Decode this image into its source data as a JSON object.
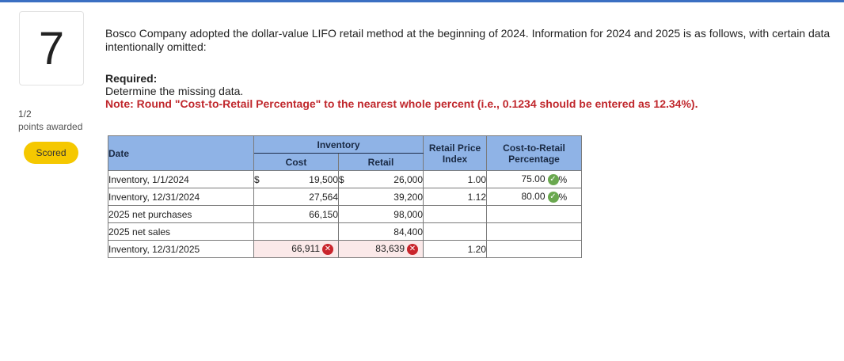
{
  "question": {
    "number": "7",
    "points": "1/2",
    "points_label": "points awarded",
    "status": "Scored",
    "text": "Bosco Company adopted the dollar-value LIFO retail method at the beginning of 2024. Information for 2024 and 2025 is as follows, with certain data intentionally omitted:",
    "required_title": "Required:",
    "required_text": "Determine the missing data.",
    "note": "Note: Round \"Cost-to-Retail Percentage\" to the nearest whole percent (i.e., 0.1234 should be entered as 12.34%)."
  },
  "table": {
    "headers": {
      "date": "Date",
      "inventory": "Inventory",
      "cost": "Cost",
      "retail": "Retail",
      "rpi": "Retail Price Index",
      "ctr": "Cost-to-Retail Percentage"
    },
    "rows": [
      {
        "date": "Inventory, 1/1/2024",
        "cost_sign": "$",
        "cost": "19,500",
        "retail_sign": "$",
        "retail": "26,000",
        "index": "1.00",
        "pct": "75.00",
        "pct_sign": "%"
      },
      {
        "date": "Inventory, 12/31/2024",
        "cost_sign": "",
        "cost": "27,564",
        "retail_sign": "",
        "retail": "39,200",
        "index": "1.12",
        "pct": "80.00",
        "pct_sign": "%"
      },
      {
        "date": "2025 net purchases",
        "cost_sign": "",
        "cost": "66,150",
        "retail_sign": "",
        "retail": "98,000",
        "index": "",
        "pct": "",
        "pct_sign": ""
      },
      {
        "date": "2025 net sales",
        "cost_sign": "",
        "cost": "",
        "retail_sign": "",
        "retail": "84,400",
        "index": "",
        "pct": "",
        "pct_sign": ""
      },
      {
        "date": "Inventory, 12/31/2025",
        "cost_sign": "",
        "cost": "66,911",
        "retail_sign": "",
        "retail": "83,639",
        "index": "1.20",
        "pct": "",
        "pct_sign": ""
      }
    ]
  },
  "colors": {
    "accent": "#3b6fc2",
    "header_bg": "#8fb3e6",
    "badge": "#f5c800",
    "note_red": "#c0282d",
    "correct": "#6aa84f",
    "incorrect": "#c9252c"
  }
}
